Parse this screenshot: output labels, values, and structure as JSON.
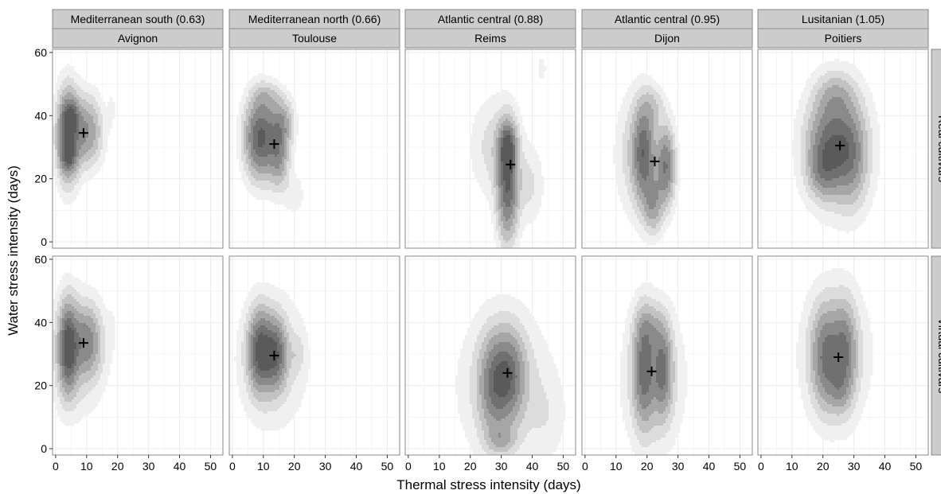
{
  "chart_data": {
    "type": "heatmap",
    "subtype": "faceted 2D density contour (greyscale) with mean marker (+)",
    "xlabel": "Thermal stress intensity (days)",
    "ylabel": "Water stress intensity (days)",
    "xlim": [
      -1,
      54
    ],
    "ylim": [
      -2,
      61
    ],
    "x_ticks": [
      0,
      10,
      20,
      30,
      40,
      50
    ],
    "y_ticks": [
      0,
      20,
      40,
      60
    ],
    "grid": true,
    "colors": {
      "panel_bg": "#ffffff",
      "strip_bg": "#cccccc",
      "grid": "#ebebeb",
      "frame": "#888888",
      "density_levels": [
        "#f0f0f0",
        "#dcdcdc",
        "#c2c2c2",
        "#a6a6a6",
        "#8a8a8a",
        "#707070",
        "#5a5a5a"
      ]
    },
    "row_labels": [
      "Real cultivars",
      "Virtual cultivars"
    ],
    "columns": [
      {
        "zone": "Mediterranean south (0.63)",
        "site": "Avignon"
      },
      {
        "zone": "Mediterranean north (0.66)",
        "site": "Toulouse"
      },
      {
        "zone": "Atlantic central (0.88)",
        "site": "Reims"
      },
      {
        "zone": "Atlantic central (0.95)",
        "site": "Dijon"
      },
      {
        "zone": "Lusitanian (1.05)",
        "site": "Poitiers"
      }
    ],
    "panels": [
      {
        "row": 0,
        "col": 0,
        "mean": [
          9,
          34.5
        ],
        "density": [
          {
            "cx": 4,
            "cy": 34,
            "sx": 2.3,
            "sy": 9,
            "w": 1.0
          },
          {
            "cx": 10,
            "cy": 35,
            "sx": 3.2,
            "sy": 7,
            "w": 0.55
          },
          {
            "cx": 4,
            "cy": 27,
            "sx": 1.6,
            "sy": 3,
            "w": 0.45
          },
          {
            "cx": 5,
            "cy": 40,
            "sx": 1.8,
            "sy": 3,
            "w": 0.4
          },
          {
            "cx": 18,
            "cy": 42,
            "sx": 0.8,
            "sy": 4,
            "w": 0.07
          }
        ]
      },
      {
        "row": 0,
        "col": 1,
        "mean": [
          13.5,
          31
        ],
        "density": [
          {
            "cx": 9,
            "cy": 33,
            "sx": 3.2,
            "sy": 8,
            "w": 1.0
          },
          {
            "cx": 15,
            "cy": 28,
            "sx": 2.2,
            "sy": 7,
            "w": 0.55
          },
          {
            "cx": 16,
            "cy": 38,
            "sx": 2.5,
            "sy": 5,
            "w": 0.4
          },
          {
            "cx": 20,
            "cy": 15,
            "sx": 2,
            "sy": 4,
            "w": 0.12
          },
          {
            "cx": 11,
            "cy": 46,
            "sx": 3,
            "sy": 3,
            "w": 0.2
          }
        ]
      },
      {
        "row": 0,
        "col": 2,
        "mean": [
          33,
          24.5
        ],
        "density": [
          {
            "cx": 32,
            "cy": 18,
            "sx": 2.2,
            "sy": 11,
            "w": 0.9
          },
          {
            "cx": 32,
            "cy": 30,
            "sx": 1.8,
            "sy": 5,
            "w": 0.7
          },
          {
            "cx": 28,
            "cy": 30,
            "sx": 5,
            "sy": 10,
            "w": 0.18
          },
          {
            "cx": 39,
            "cy": 18,
            "sx": 3,
            "sy": 8,
            "w": 0.15
          },
          {
            "cx": 43,
            "cy": 55,
            "sx": 1.2,
            "sy": 3.5,
            "w": 0.08
          }
        ]
      },
      {
        "row": 0,
        "col": 3,
        "mean": [
          22.5,
          25.5
        ],
        "density": [
          {
            "cx": 19,
            "cy": 28,
            "sx": 2.3,
            "sy": 10,
            "w": 0.8
          },
          {
            "cx": 26,
            "cy": 24,
            "sx": 2.0,
            "sy": 8,
            "w": 0.75
          },
          {
            "cx": 22,
            "cy": 12,
            "sx": 2,
            "sy": 6,
            "w": 0.45
          },
          {
            "cx": 16,
            "cy": 28,
            "sx": 4,
            "sy": 12,
            "w": 0.2
          },
          {
            "cx": 22,
            "cy": 43,
            "sx": 2.5,
            "sy": 4,
            "w": 0.2
          }
        ]
      },
      {
        "row": 0,
        "col": 4,
        "mean": [
          25.5,
          30.5
        ],
        "density": [
          {
            "cx": 22,
            "cy": 30,
            "sx": 4.5,
            "sy": 9,
            "w": 0.75
          },
          {
            "cx": 29,
            "cy": 28,
            "sx": 3.5,
            "sy": 10,
            "w": 0.55
          },
          {
            "cx": 24,
            "cy": 46,
            "sx": 4,
            "sy": 5,
            "w": 0.3
          },
          {
            "cx": 20,
            "cy": 22,
            "sx": 3,
            "sy": 5,
            "w": 0.3
          },
          {
            "cx": 25,
            "cy": 30,
            "sx": 8,
            "sy": 14,
            "w": 0.15
          }
        ]
      },
      {
        "row": 1,
        "col": 0,
        "mean": [
          9,
          33.5
        ],
        "density": [
          {
            "cx": 4,
            "cy": 32,
            "sx": 2.0,
            "sy": 9,
            "w": 1.0
          },
          {
            "cx": 10,
            "cy": 34,
            "sx": 3.0,
            "sy": 7,
            "w": 0.55
          },
          {
            "cx": 7,
            "cy": 30,
            "sx": 6,
            "sy": 12,
            "w": 0.2
          },
          {
            "cx": 18,
            "cy": 38,
            "sx": 0.8,
            "sy": 4,
            "w": 0.06
          }
        ]
      },
      {
        "row": 1,
        "col": 1,
        "mean": [
          13.5,
          29.5
        ],
        "density": [
          {
            "cx": 9,
            "cy": 31,
            "sx": 2.5,
            "sy": 8,
            "w": 0.95
          },
          {
            "cx": 14,
            "cy": 30,
            "sx": 2.3,
            "sy": 7,
            "w": 0.75
          },
          {
            "cx": 13,
            "cy": 28,
            "sx": 7,
            "sy": 13,
            "w": 0.2
          },
          {
            "cx": 21,
            "cy": 30,
            "sx": 1.5,
            "sy": 4,
            "w": 0.12
          }
        ]
      },
      {
        "row": 1,
        "col": 2,
        "mean": [
          32,
          24
        ],
        "density": [
          {
            "cx": 32,
            "cy": 23,
            "sx": 3.5,
            "sy": 9,
            "w": 0.75
          },
          {
            "cx": 27,
            "cy": 20,
            "sx": 3,
            "sy": 10,
            "w": 0.45
          },
          {
            "cx": 31,
            "cy": 20,
            "sx": 9,
            "sy": 15,
            "w": 0.22
          },
          {
            "cx": 30,
            "cy": 3,
            "sx": 3,
            "sy": 3,
            "w": 0.3
          },
          {
            "cx": 45,
            "cy": 10,
            "sx": 4,
            "sy": 9,
            "w": 0.08
          }
        ]
      },
      {
        "row": 1,
        "col": 3,
        "mean": [
          21.5,
          24.5
        ],
        "density": [
          {
            "cx": 19,
            "cy": 25,
            "sx": 2.2,
            "sy": 11,
            "w": 0.7
          },
          {
            "cx": 25,
            "cy": 25,
            "sx": 2,
            "sy": 9,
            "w": 0.65
          },
          {
            "cx": 22,
            "cy": 22,
            "sx": 6,
            "sy": 14,
            "w": 0.25
          },
          {
            "cx": 21,
            "cy": 38,
            "sx": 3,
            "sy": 5,
            "w": 0.25
          }
        ]
      },
      {
        "row": 1,
        "col": 4,
        "mean": [
          25,
          29
        ],
        "density": [
          {
            "cx": 21,
            "cy": 29,
            "sx": 3,
            "sy": 10,
            "w": 0.65
          },
          {
            "cx": 27,
            "cy": 30,
            "sx": 2.5,
            "sy": 10,
            "w": 0.6
          },
          {
            "cx": 24,
            "cy": 30,
            "sx": 7,
            "sy": 14,
            "w": 0.22
          },
          {
            "cx": 25,
            "cy": 18,
            "sx": 2,
            "sy": 4,
            "w": 0.2
          }
        ]
      }
    ]
  }
}
